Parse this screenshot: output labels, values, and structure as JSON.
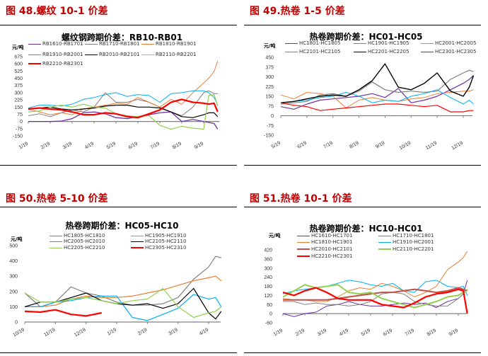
{
  "sections": [
    "图 48.螺纹 10-1 价差",
    "图 49.热卷 1-5 价差",
    "图 50.热卷 5-10 价差",
    "图 51.热卷 10-1 价差"
  ],
  "chart_data": [
    {
      "type": "line",
      "title": "螺纹钢跨期价差：RB10-RB01",
      "ylabel": "元/吨",
      "ylim": [
        -150,
        675
      ],
      "yticks": [
        -150,
        -75,
        0,
        75,
        150,
        225,
        300,
        375,
        450,
        525,
        600,
        675
      ],
      "xticks": [
        "1/19",
        "2/19",
        "3/19",
        "4/19",
        "5/19",
        "6/19",
        "7/19",
        "8/19",
        "9/19"
      ],
      "x": [
        "1/19",
        "2/4",
        "2/19",
        "3/4",
        "3/19",
        "4/4",
        "4/19",
        "5/4",
        "5/19",
        "6/4",
        "6/19",
        "7/4",
        "7/19",
        "8/4",
        "8/19",
        "9/4",
        "9/19",
        "9/26",
        "10/3",
        "10/8"
      ],
      "series": [
        {
          "name": "RB1610-RB1701",
          "color": "#7030a0",
          "width": 1.3,
          "values": [
            0,
            0,
            0,
            5,
            30,
            90,
            100,
            80,
            40,
            30,
            50,
            70,
            90,
            100,
            0,
            20,
            0,
            -10,
            -20,
            -80
          ]
        },
        {
          "name": "RB1710-RB1801",
          "color": "#808080",
          "width": 1,
          "values": [
            60,
            80,
            50,
            90,
            120,
            100,
            150,
            300,
            200,
            200,
            230,
            200,
            150,
            100,
            60,
            150,
            300,
            320,
            290,
            290
          ]
        },
        {
          "name": "RB1810-RB1901",
          "color": "#ed7d31",
          "width": 1,
          "values": [
            130,
            100,
            70,
            90,
            70,
            130,
            150,
            170,
            190,
            180,
            250,
            200,
            150,
            230,
            180,
            300,
            400,
            450,
            520,
            630
          ]
        },
        {
          "name": "RB1910-RB2001",
          "color": "#00b0f0",
          "width": 1,
          "values": [
            140,
            170,
            170,
            160,
            180,
            230,
            250,
            280,
            300,
            260,
            280,
            270,
            200,
            290,
            300,
            320,
            320,
            300,
            250,
            170
          ]
        },
        {
          "name": "RB2010-RB2101",
          "color": "#000000",
          "width": 1.2,
          "values": [
            130,
            140,
            150,
            130,
            120,
            130,
            140,
            160,
            170,
            170,
            150,
            150,
            140,
            100,
            50,
            40,
            70,
            90,
            90,
            50
          ]
        },
        {
          "name": "RB2110-RB2201",
          "color": "#92d050",
          "width": 1.2,
          "values": [
            100,
            110,
            150,
            170,
            150,
            180,
            150,
            140,
            80,
            60,
            50,
            60,
            -40,
            -80,
            -50,
            -70,
            -80,
            270,
            280,
            160
          ]
        },
        {
          "name": "RB2210-RB2301",
          "color": "#ff0000",
          "width": 2.2,
          "values": [
            130,
            140,
            130,
            120,
            100,
            70,
            70,
            90,
            80,
            50,
            40,
            80,
            120,
            200,
            230,
            200,
            190,
            180,
            190,
            100
          ]
        }
      ]
    },
    {
      "type": "line",
      "title": "热卷跨期价差：HC01-HC05",
      "ylabel": "元/吨",
      "ylim": [
        -150,
        450
      ],
      "yticks": [
        -150,
        -75,
        0,
        75,
        150,
        225,
        300,
        375,
        450
      ],
      "xticks": [
        "5/19",
        "6/19",
        "7/19",
        "8/19",
        "9/19",
        "10/19",
        "11/19",
        "12/19"
      ],
      "x": [
        "5/19",
        "6/4",
        "6/19",
        "7/4",
        "7/19",
        "8/4",
        "8/19",
        "9/4",
        "9/19",
        "10/4",
        "10/19",
        "11/4",
        "11/19",
        "12/4",
        "12/19",
        "12/26",
        "12/31"
      ],
      "series": [
        {
          "name": "HC1801-HC1805",
          "color": "#7030a0",
          "width": 1.2,
          "values": [
            70,
            50,
            90,
            120,
            130,
            140,
            150,
            170,
            140,
            210,
            100,
            120,
            150,
            200,
            250,
            280,
            310
          ]
        },
        {
          "name": "HC1901-HC1905",
          "color": "#808080",
          "width": 1.2,
          "values": [
            90,
            100,
            110,
            160,
            170,
            150,
            190,
            260,
            200,
            180,
            190,
            180,
            190,
            280,
            330,
            350,
            340
          ]
        },
        {
          "name": "HC2001-HC2005",
          "color": "#ed7d31",
          "width": 1,
          "values": [
            160,
            130,
            180,
            170,
            150,
            60,
            120,
            140,
            120,
            110,
            130,
            140,
            170,
            180,
            190,
            190,
            200
          ]
        },
        {
          "name": "HC2101-HC2105",
          "color": "#00b0f0",
          "width": 1,
          "values": [
            100,
            110,
            120,
            140,
            150,
            180,
            150,
            100,
            120,
            110,
            150,
            170,
            200,
            140,
            90,
            120,
            90
          ]
        },
        {
          "name": "HC2201-HC2205",
          "color": "#000000",
          "width": 1.4,
          "values": [
            100,
            110,
            130,
            150,
            160,
            150,
            200,
            270,
            400,
            220,
            200,
            250,
            330,
            190,
            150,
            220,
            310
          ]
        },
        {
          "name": "HC2301-HC2305",
          "color": "#ff0000",
          "width": 1.2,
          "values": [
            100,
            80,
            70,
            40,
            50,
            60,
            70,
            80,
            90,
            90,
            80,
            70,
            80,
            30,
            30,
            40,
            40
          ]
        }
      ]
    },
    {
      "type": "line",
      "title": "热卷跨期价差：HC05-HC10",
      "ylabel": "元/吨",
      "ylim": [
        0,
        500
      ],
      "yticks": [
        0,
        100,
        200,
        300,
        400,
        500
      ],
      "xticks": [
        "10/19",
        "11/19",
        "12/19",
        "1/19",
        "2/19",
        "3/19",
        "4/19"
      ],
      "x": [
        "10/19",
        "11/4",
        "11/19",
        "12/4",
        "12/19",
        "1/4",
        "1/19",
        "2/4",
        "2/19",
        "3/4",
        "3/19",
        "4/4",
        "4/19",
        "4/26",
        "5/1"
      ],
      "series": [
        {
          "name": "HC1805-HC1810",
          "color": "#808080",
          "width": 1.2,
          "values": [
            190,
            100,
            130,
            230,
            190,
            170,
            130,
            110,
            110,
            120,
            160,
            280,
            360,
            430,
            420
          ]
        },
        {
          "name": "HC1905-HC1910",
          "color": "#ed7d31",
          "width": 1.2,
          "values": [
            100,
            100,
            110,
            150,
            170,
            160,
            160,
            170,
            190,
            210,
            240,
            270,
            290,
            300,
            270
          ]
        },
        {
          "name": "HC2005-HC2010",
          "color": "#00b0f0",
          "width": 1.2,
          "values": [
            100,
            100,
            130,
            140,
            160,
            170,
            170,
            30,
            10,
            50,
            90,
            180,
            150,
            160,
            100
          ]
        },
        {
          "name": "HC2105-HC2110",
          "color": "#000000",
          "width": 1.2,
          "values": [
            100,
            130,
            130,
            160,
            190,
            140,
            120,
            110,
            120,
            90,
            120,
            220,
            60,
            20,
            70
          ]
        },
        {
          "name": "HC2205-HC2210",
          "color": "#92d050",
          "width": 1.2,
          "values": [
            190,
            130,
            130,
            150,
            160,
            140,
            120,
            140,
            150,
            220,
            100,
            30,
            60,
            70,
            100
          ]
        },
        {
          "name": "HC2305-HC2310",
          "color": "#ff0000",
          "width": 2.2,
          "values": [
            70,
            65,
            80,
            50,
            40,
            60,
            null,
            null,
            null,
            null,
            null,
            null,
            null,
            null,
            null
          ]
        }
      ]
    },
    {
      "type": "line",
      "title": "热卷跨期价差：HC10-HC01",
      "ylabel": "元/吨",
      "ylim": [
        -60,
        420
      ],
      "yticks": [
        -60,
        0,
        60,
        120,
        180,
        240,
        300,
        360,
        420
      ],
      "xticks": [
        "1/19",
        "2/19",
        "3/19",
        "4/19",
        "5/19",
        "6/19",
        "7/19",
        "8/19",
        "9/19"
      ],
      "x": [
        "1/19",
        "2/4",
        "2/19",
        "3/4",
        "3/19",
        "4/4",
        "4/19",
        "5/4",
        "5/19",
        "6/4",
        "6/19",
        "7/4",
        "7/19",
        "8/4",
        "8/19",
        "9/4",
        "9/19",
        "9/26",
        "10/1"
      ],
      "series": [
        {
          "name": "HC1610-HC1701",
          "color": "#7030a0",
          "width": 1,
          "values": [
            0,
            -20,
            0,
            10,
            50,
            60,
            80,
            60,
            50,
            50,
            60,
            70,
            60,
            70,
            40,
            80,
            100,
            130,
            220
          ]
        },
        {
          "name": "HC1710-HC1801",
          "color": "#808080",
          "width": 1,
          "values": [
            80,
            80,
            60,
            70,
            60,
            60,
            50,
            60,
            80,
            130,
            140,
            130,
            80,
            60,
            50,
            50,
            100,
            130,
            160
          ]
        },
        {
          "name": "HC1810-HC1901",
          "color": "#ed7d31",
          "width": 1,
          "values": [
            100,
            90,
            90,
            80,
            80,
            110,
            150,
            170,
            160,
            200,
            180,
            150,
            110,
            140,
            180,
            290,
            340,
            370,
            410
          ]
        },
        {
          "name": "HC1910-HC2001",
          "color": "#00b0f0",
          "width": 1,
          "values": [
            130,
            150,
            160,
            170,
            180,
            200,
            220,
            210,
            190,
            180,
            200,
            150,
            140,
            210,
            220,
            180,
            170,
            180,
            120
          ]
        },
        {
          "name": "HC2010-HC2101",
          "color": "#c0504d",
          "width": 2,
          "values": [
            90,
            90,
            90,
            90,
            90,
            100,
            110,
            120,
            130,
            140,
            140,
            150,
            160,
            150,
            140,
            150,
            170,
            160,
            150
          ]
        },
        {
          "name": "HC2110-HC2201",
          "color": "#92d050",
          "width": 2,
          "values": [
            110,
            150,
            190,
            170,
            180,
            190,
            140,
            130,
            140,
            100,
            80,
            60,
            40,
            60,
            80,
            110,
            120,
            140,
            150
          ]
        },
        {
          "name": "HC2210-HC2301",
          "color": "#ff0000",
          "width": 2.2,
          "values": [
            140,
            120,
            150,
            170,
            140,
            100,
            90,
            90,
            90,
            60,
            50,
            40,
            70,
            110,
            130,
            140,
            160,
            150,
            0
          ]
        }
      ]
    }
  ]
}
